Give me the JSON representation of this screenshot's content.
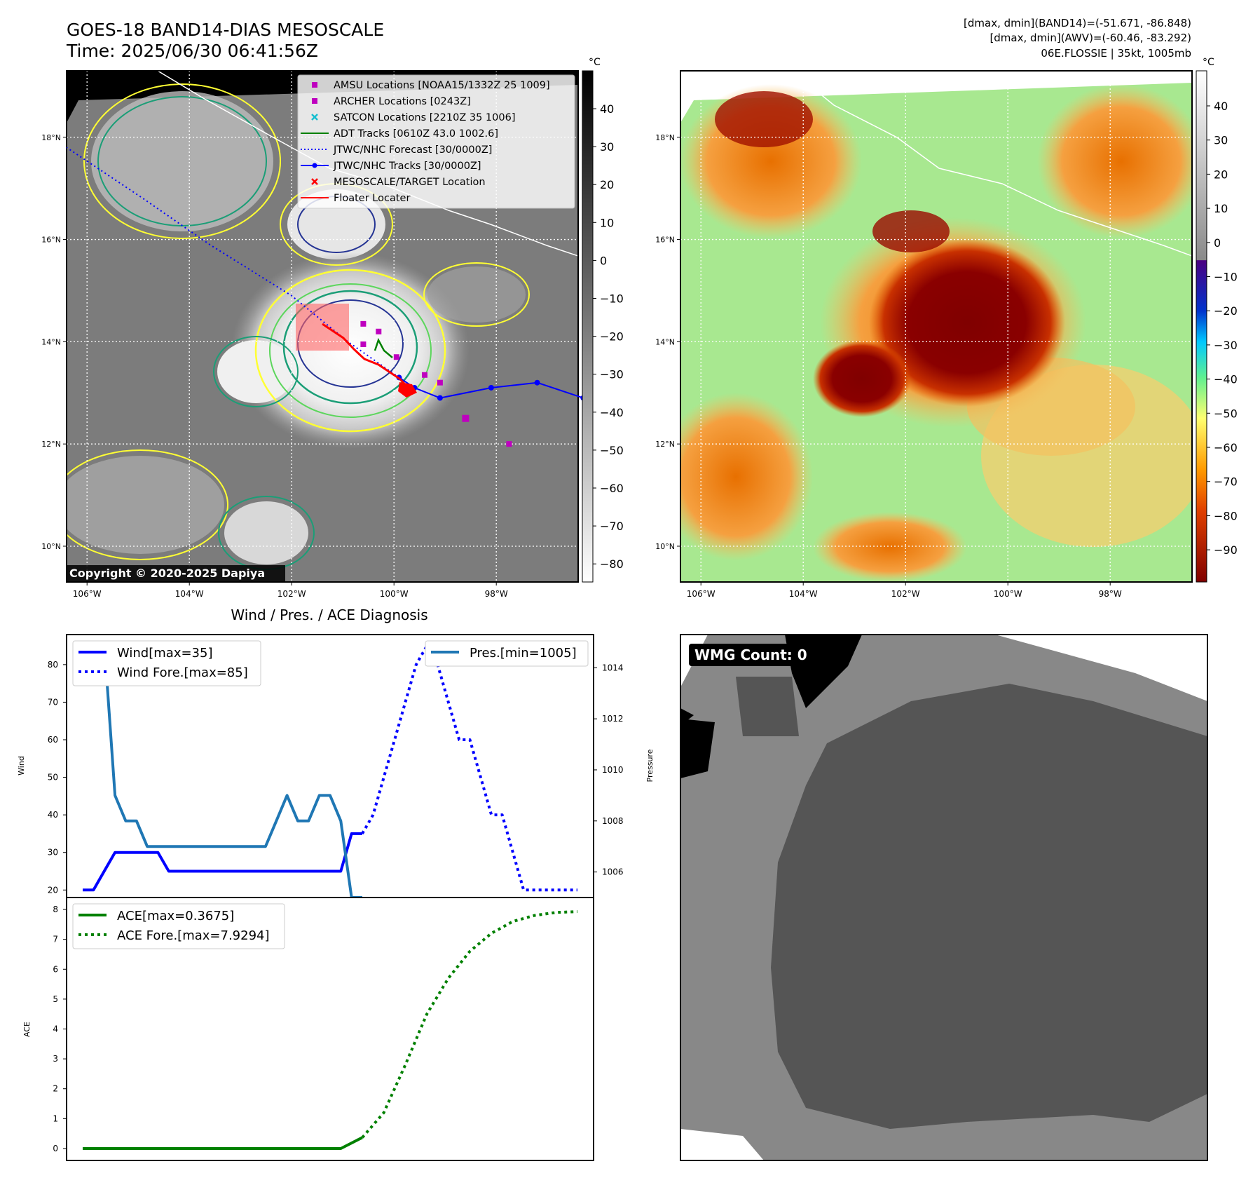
{
  "header": {
    "title": "GOES-18 BAND14-DIAS MESOSCALE",
    "time": "Time: 2025/06/30 06:41:56Z",
    "info_lines": [
      "[dmax, dmin](BAND14)=(-51.671, -86.848)",
      "[dmax, dmin](AWV)=(-60.46, -83.292)",
      "06E.FLOSSIE | 35kt, 1005mb"
    ]
  },
  "map": {
    "lon_labels": [
      "106°W",
      "104°W",
      "102°W",
      "100°W",
      "98°W"
    ],
    "lat_labels": [
      "18°N",
      "16°N",
      "14°N",
      "12°N",
      "10°N"
    ],
    "lons": [
      -106,
      -104,
      -102,
      -100,
      -98
    ],
    "lats": [
      18,
      16,
      14,
      12,
      10
    ],
    "lon_range": [
      -106.4,
      -96.4
    ],
    "lat_range": [
      9.3,
      19.3
    ],
    "copyright": "Copyright © 2020-2025 Dapiya",
    "legend": [
      {
        "label": "AMSU Locations [NOAA15/1332Z 25 1009]",
        "marker": "square",
        "color": "#bf00bf"
      },
      {
        "label": "ARCHER Locations [0243Z]",
        "marker": "square",
        "color": "#bf00bf"
      },
      {
        "label": "SATCON Locations [2210Z 35 1006]",
        "marker": "x",
        "color": "#17becf"
      },
      {
        "label": "ADT Tracks [0610Z 43.0 1002.6]",
        "marker": "line",
        "color": "#008000"
      },
      {
        "label": "JTWC/NHC Forecast [30/0000Z]",
        "marker": "dotted",
        "color": "#0000ff"
      },
      {
        "label": "JTWC/NHC Tracks [30/0000Z]",
        "marker": "line-dot",
        "color": "#0000ff"
      },
      {
        "label": "MESOSCALE/TARGET Location",
        "marker": "x",
        "color": "#ff0000"
      },
      {
        "label": "Floater Locater",
        "marker": "line",
        "color": "#ff0000"
      }
    ],
    "jtwc_track": [
      [
        -96.3,
        12.9
      ],
      [
        -97.2,
        13.2
      ],
      [
        -98.1,
        13.1
      ],
      [
        -99.1,
        12.9
      ],
      [
        -99.6,
        13.1
      ],
      [
        -99.9,
        13.3
      ]
    ],
    "jtwc_forecast": [
      [
        -99.9,
        13.3
      ],
      [
        -100.9,
        14.0
      ],
      [
        -102.0,
        14.9
      ],
      [
        -103.6,
        15.9
      ],
      [
        -104.9,
        16.8
      ],
      [
        -106.4,
        17.8
      ]
    ],
    "amsu": [
      [
        -98.6,
        12.5
      ]
    ],
    "archer": [
      [
        -100.6,
        14.35
      ],
      [
        -100.3,
        14.2
      ],
      [
        -100.6,
        13.95
      ],
      [
        -99.95,
        13.7
      ],
      [
        -99.4,
        13.35
      ],
      [
        -99.1,
        13.2
      ],
      [
        -97.75,
        12.0
      ]
    ]
  },
  "colorbar_ir": {
    "unit": "°C",
    "ticks": [
      "40",
      "30",
      "20",
      "10",
      "0",
      "−10",
      "−20",
      "−30",
      "−40",
      "−50",
      "−60",
      "−70",
      "−80"
    ]
  },
  "colorbar_wv": {
    "unit": "°C",
    "ticks": [
      "40",
      "30",
      "20",
      "10",
      "0",
      "−10",
      "−20",
      "−30",
      "−40",
      "−50",
      "−60",
      "−70",
      "−80",
      "−90"
    ]
  },
  "chart_data": [
    {
      "type": "line",
      "title": "Wind / Pres. / ACE Diagnosis",
      "ylabel": "Wind",
      "y2label": "Pressure",
      "ylim": [
        18,
        88
      ],
      "y2lim": [
        1005,
        1015.3
      ],
      "y_ticks": [
        "20",
        "30",
        "40",
        "50",
        "60",
        "70",
        "80"
      ],
      "y2_ticks": [
        "1006",
        "1008",
        "1010",
        "1012",
        "1014"
      ],
      "series": [
        {
          "name": "Wind[max=35]",
          "color": "#0000ff",
          "style": "solid",
          "x": [
            0,
            1,
            2,
            3,
            4,
            5,
            6,
            7,
            8,
            9,
            10,
            11,
            12,
            13,
            14,
            15,
            16,
            17,
            18,
            19,
            20,
            21,
            22,
            23,
            24,
            25,
            26
          ],
          "values": [
            20,
            20,
            25,
            30,
            30,
            30,
            30,
            30,
            25,
            25,
            25,
            25,
            25,
            25,
            25,
            25,
            25,
            25,
            25,
            25,
            25,
            25,
            25,
            25,
            25,
            35,
            35
          ]
        },
        {
          "name": "Wind Fore.[max=85]",
          "color": "#0000ff",
          "style": "dotted",
          "x": [
            26,
            27,
            28,
            29,
            30,
            31,
            32,
            33,
            34,
            35,
            36,
            37,
            38,
            39,
            40,
            41,
            42,
            43,
            44,
            45,
            46
          ],
          "values": [
            35,
            40,
            50,
            60,
            70,
            80,
            85,
            80,
            70,
            60,
            60,
            50,
            40,
            40,
            30,
            20,
            20,
            20,
            20,
            20,
            20
          ]
        },
        {
          "name": "Pres.[min=1005]",
          "color": "#1f77b4",
          "style": "solid",
          "axis": "y2",
          "x": [
            0,
            1,
            2,
            3,
            4,
            5,
            6,
            7,
            8,
            9,
            10,
            11,
            12,
            13,
            14,
            15,
            16,
            17,
            18,
            19,
            20,
            21,
            22,
            23,
            24,
            25,
            26
          ],
          "values": [
            1015,
            1015,
            1015,
            1009,
            1008,
            1008,
            1007,
            1007,
            1007,
            1007,
            1007,
            1007,
            1007,
            1007,
            1007,
            1007,
            1007,
            1007,
            1008,
            1009,
            1008,
            1008,
            1009,
            1009,
            1008,
            1005,
            1005
          ]
        }
      ]
    },
    {
      "type": "line",
      "ylabel": "ACE",
      "ylim": [
        -0.4,
        8.4
      ],
      "y_ticks": [
        "0",
        "1",
        "2",
        "3",
        "4",
        "5",
        "6",
        "7",
        "8"
      ],
      "series": [
        {
          "name": "ACE[max=0.3675]",
          "color": "#008000",
          "style": "solid",
          "x": [
            0,
            5,
            10,
            15,
            20,
            24,
            26
          ],
          "values": [
            0,
            0,
            0,
            0,
            0,
            0,
            0.3675
          ]
        },
        {
          "name": "ACE Fore.[max=7.9294]",
          "color": "#008000",
          "style": "dotted",
          "x": [
            26,
            28,
            30,
            32,
            34,
            36,
            38,
            40,
            42,
            44,
            46
          ],
          "values": [
            0.3675,
            1.2,
            2.8,
            4.5,
            5.7,
            6.6,
            7.2,
            7.6,
            7.8,
            7.9,
            7.9294
          ]
        }
      ]
    }
  ],
  "wmg": {
    "label": "WMG Count: 0"
  }
}
